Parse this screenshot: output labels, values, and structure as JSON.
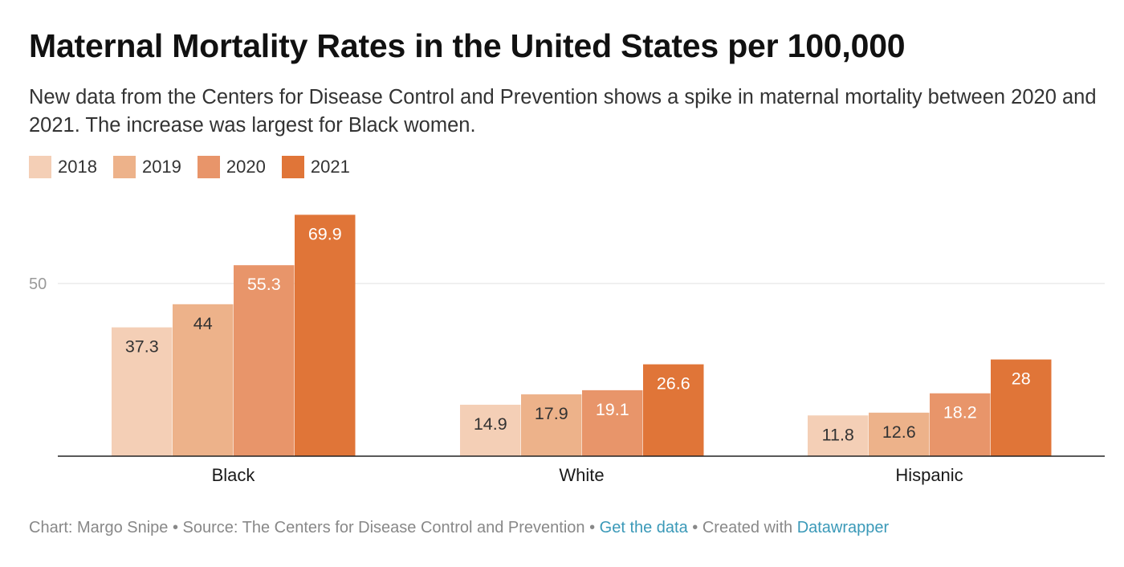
{
  "header": {
    "title": "Maternal Mortality Rates in the United States per 100,000",
    "subtitle": "New data from the Centers for Disease Control and Prevention shows a spike in maternal mortality between 2020 and 2021. The increase was largest for Black women."
  },
  "legend": {
    "items": [
      {
        "label": "2018",
        "color": "#f4cfb6"
      },
      {
        "label": "2019",
        "color": "#edb28a"
      },
      {
        "label": "2020",
        "color": "#e8956a"
      },
      {
        "label": "2021",
        "color": "#e07538"
      }
    ]
  },
  "chart_data": {
    "type": "bar",
    "title": "Maternal Mortality Rates in the United States per 100,000",
    "xlabel": "",
    "ylabel": "",
    "categories": [
      "Black",
      "White",
      "Hispanic"
    ],
    "series": [
      {
        "name": "2018",
        "values": [
          37.3,
          14.9,
          11.8
        ],
        "label_color": "#333333"
      },
      {
        "name": "2019",
        "values": [
          44,
          17.9,
          12.6
        ],
        "label_color": "#333333"
      },
      {
        "name": "2020",
        "values": [
          55.3,
          19.1,
          18.2
        ],
        "label_color": "#ffffff"
      },
      {
        "name": "2021",
        "values": [
          69.9,
          26.6,
          28
        ],
        "label_color": "#ffffff"
      }
    ],
    "ylim": [
      0,
      70
    ],
    "yticks": [
      50
    ],
    "grid": true,
    "legend": "top-left"
  },
  "footer": {
    "credit": "Chart: Margo Snipe • Source: The Centers for Disease Control and Prevention • ",
    "data_link": "Get the data",
    "separator": " • Created with ",
    "tool_link": "Datawrapper"
  }
}
